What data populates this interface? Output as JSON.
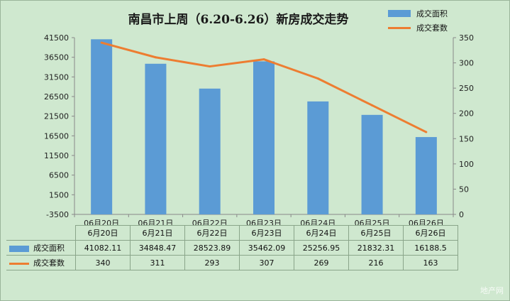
{
  "chart_data": {
    "type": "bar+line",
    "title": "南昌市上周（6.20-6.26）新房成交走势",
    "categories": [
      "06月20日",
      "06月21日",
      "06月22日",
      "06月23日",
      "06月24日",
      "06月25日",
      "06月26日"
    ],
    "table_categories": [
      "6月20日",
      "6月21日",
      "6月22日",
      "6月23日",
      "6月24日",
      "6月25日",
      "6月26日"
    ],
    "series": [
      {
        "name": "成交面积",
        "type": "bar",
        "axis": "left",
        "color": "#5b9bd5",
        "values": [
          41082.11,
          34848.47,
          28523.89,
          35462.09,
          25256.95,
          21832.31,
          16188.5
        ],
        "labels": [
          "41082.11",
          "34848.47",
          "28523.89",
          "35462.09",
          "25256.95",
          "21832.31",
          "16188.5"
        ]
      },
      {
        "name": "成交套数",
        "type": "line",
        "axis": "right",
        "color": "#ed7d31",
        "values": [
          340,
          311,
          293,
          307,
          269,
          216,
          163
        ],
        "labels": [
          "340",
          "311",
          "293",
          "307",
          "269",
          "216",
          "163"
        ]
      }
    ],
    "y_left": {
      "ylim": [
        -3500,
        41500
      ],
      "ticks": [
        41500,
        36500,
        31500,
        26500,
        21500,
        16500,
        11500,
        6500,
        1500,
        -3500
      ]
    },
    "y_right": {
      "ylim": [
        0,
        350
      ],
      "ticks": [
        350,
        300,
        250,
        200,
        150,
        100,
        50,
        0
      ]
    },
    "grid": false,
    "legend_position": "top-right",
    "data_table": true
  },
  "watermark": "地产网"
}
